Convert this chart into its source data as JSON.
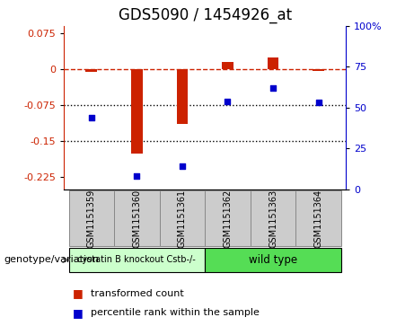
{
  "title": "GDS5090 / 1454926_at",
  "categories": [
    "GSM1151359",
    "GSM1151360",
    "GSM1151361",
    "GSM1151362",
    "GSM1151363",
    "GSM1151364"
  ],
  "bar_values": [
    -0.005,
    -0.175,
    -0.115,
    0.015,
    0.025,
    -0.004
  ],
  "dot_values_right": [
    44,
    8,
    14,
    54,
    62,
    53
  ],
  "ylim_left": [
    -0.25,
    0.09
  ],
  "ylim_right": [
    0,
    100
  ],
  "yticks_left": [
    0.075,
    0,
    -0.075,
    -0.15,
    -0.225
  ],
  "yticks_right": [
    100,
    75,
    50,
    25,
    0
  ],
  "hlines": [
    -0.075,
    -0.15
  ],
  "bar_color": "#cc2200",
  "dot_color": "#0000cc",
  "dashed_line_y": 0,
  "group1_label": "cystatin B knockout Cstb-/-",
  "group2_label": "wild type",
  "group1_indices": [
    0,
    1,
    2
  ],
  "group2_indices": [
    3,
    4,
    5
  ],
  "group1_color": "#ccffcc",
  "group2_color": "#55dd55",
  "genotype_label": "genotype/variation",
  "legend_bar_label": "transformed count",
  "legend_dot_label": "percentile rank within the sample",
  "bar_width": 0.25,
  "bg_color": "#ffffff",
  "plot_bg": "#ffffff",
  "tick_label_color_left": "#cc2200",
  "tick_label_color_right": "#0000cc",
  "title_fontsize": 12,
  "tick_fontsize": 8,
  "label_fontsize": 8,
  "sample_box_color": "#cccccc",
  "sample_box_edge": "#888888"
}
